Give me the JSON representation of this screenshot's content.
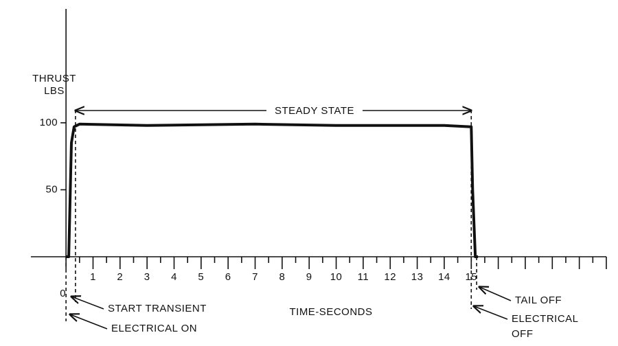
{
  "chart_data": {
    "type": "line",
    "y_label": [
      "THRUST",
      "LBS"
    ],
    "x_label": "TIME-SECONDS",
    "x": [
      0,
      0.1,
      0.2,
      0.3,
      0.5,
      3,
      7,
      10,
      14,
      15,
      15.05,
      15.15,
      15.25
    ],
    "values": [
      0,
      0,
      85,
      97,
      99,
      98,
      99,
      98,
      98,
      97,
      50,
      0,
      0
    ],
    "color": "#111111",
    "xlim": [
      -1.3,
      20
    ],
    "ylim": [
      0,
      185
    ],
    "xticks": [
      0,
      1,
      2,
      3,
      4,
      5,
      6,
      7,
      8,
      9,
      10,
      11,
      12,
      13,
      14,
      15
    ],
    "xminor_ticks": [
      0.5,
      1.5,
      2.5,
      3.5,
      4.5,
      5.5,
      6.5,
      7.5,
      8.5,
      9.5,
      10.5,
      11.5,
      12.5,
      13.5,
      14.5,
      15.5,
      16,
      16.5,
      17,
      17.5,
      18,
      18.5,
      19,
      19.5,
      20
    ],
    "yticks": [
      50,
      100
    ],
    "steady_state": {
      "label": "STEADY STATE",
      "x": [
        0.35,
        15
      ]
    },
    "events": [
      {
        "label": [
          "START TRANSIENT"
        ],
        "x": 0.35
      },
      {
        "label": [
          "ELECTRICAL ON"
        ],
        "x": 0
      },
      {
        "label": [
          "TAIL OFF"
        ],
        "x": 15.2
      },
      {
        "label": [
          "ELECTRICAL",
          "OFF"
        ],
        "x": 15
      }
    ]
  }
}
